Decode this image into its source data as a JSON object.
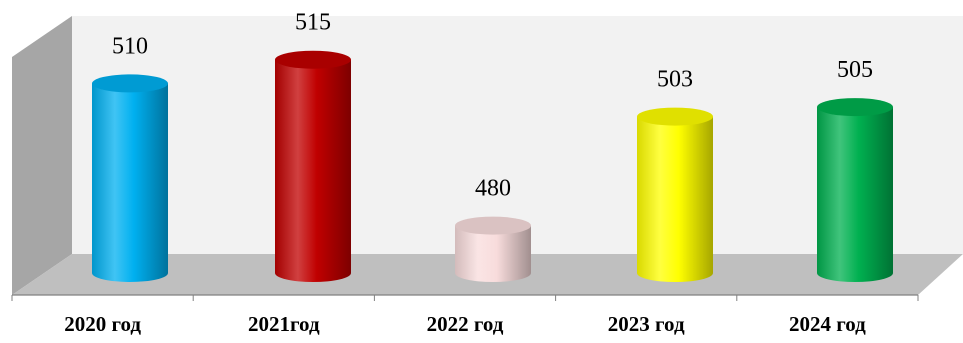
{
  "chart_data": {
    "type": "bar",
    "style": "3d-cylinder",
    "categories": [
      "2020 год",
      "2021год",
      "2022 год",
      "2023 год",
      "2024 год"
    ],
    "values": [
      510,
      515,
      480,
      503,
      505
    ],
    "ylim": [
      470,
      520
    ],
    "bar_colors": [
      "#00B0F0",
      "#C00000",
      "#F8DCDC",
      "#FFFF00",
      "#00B050"
    ],
    "data_labels": [
      "510",
      "515",
      "480",
      "503",
      "505"
    ],
    "title": "",
    "xlabel": "",
    "ylabel": "",
    "legend": "none",
    "grid": false
  },
  "colors": {
    "back_wall": "#F2F2F2",
    "side_wall": "#A6A6A6",
    "floor": "#BFBFBF",
    "axis": "#808080"
  }
}
